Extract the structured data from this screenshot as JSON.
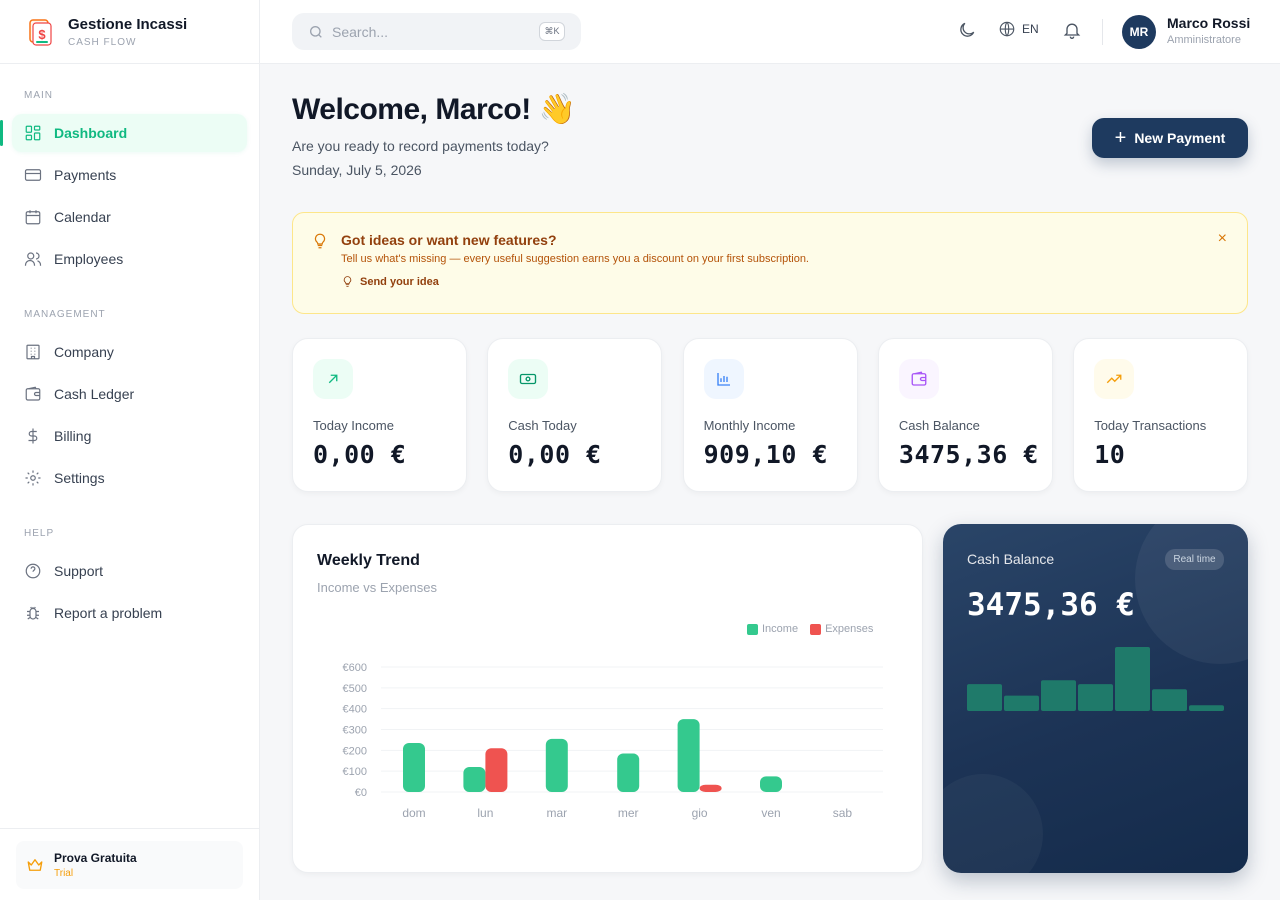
{
  "brand": {
    "title": "Gestione Incassi",
    "subtitle": "CASH FLOW"
  },
  "sidebar": {
    "sections": [
      {
        "label": "MAIN",
        "items": [
          {
            "label": "Dashboard",
            "icon": "grid-icon",
            "active": true
          },
          {
            "label": "Payments",
            "icon": "card-icon"
          },
          {
            "label": "Calendar",
            "icon": "calendar-icon"
          },
          {
            "label": "Employees",
            "icon": "users-icon"
          }
        ]
      },
      {
        "label": "MANAGEMENT",
        "items": [
          {
            "label": "Company",
            "icon": "building-icon"
          },
          {
            "label": "Cash Ledger",
            "icon": "wallet-icon"
          },
          {
            "label": "Billing",
            "icon": "dollar-icon"
          },
          {
            "label": "Settings",
            "icon": "gear-icon"
          }
        ]
      },
      {
        "label": "HELP",
        "items": [
          {
            "label": "Support",
            "icon": "help-circle-icon"
          },
          {
            "label": "Report a problem",
            "icon": "bug-icon"
          }
        ]
      }
    ],
    "trial": {
      "title": "Prova Gratuita",
      "subtitle": "Trial"
    }
  },
  "header": {
    "search_placeholder": "Search...",
    "search_shortcut": "⌘K",
    "language": "EN",
    "user": {
      "initials": "MR",
      "name": "Marco Rossi",
      "role": "Amministratore"
    }
  },
  "welcome": {
    "title": "Welcome, Marco! 👋",
    "subtitle": "Are you ready to record payments today?",
    "date": "Sunday, July 5, 2026",
    "new_payment_label": "New Payment"
  },
  "banner": {
    "title": "Got ideas or want new features?",
    "text": "Tell us what's missing — every useful suggestion earns you a discount on your first subscription.",
    "link": "Send your idea",
    "close": "×"
  },
  "stats": [
    {
      "label": "Today Income",
      "value": "0,00 €",
      "icon": "arrow-up-right-icon",
      "color": "#10b981",
      "bg": "#ecfdf5"
    },
    {
      "label": "Cash Today",
      "value": "0,00 €",
      "icon": "banknote-icon",
      "color": "#059669",
      "bg": "#ecfdf5"
    },
    {
      "label": "Monthly Income",
      "value": "909,10 €",
      "icon": "bar-chart-icon",
      "color": "#3b82f6",
      "bg": "#eff6ff"
    },
    {
      "label": "Cash Balance",
      "value": "3475,36 €",
      "icon": "wallet-icon",
      "color": "#a855f7",
      "bg": "#faf5ff"
    },
    {
      "label": "Today Transactions",
      "value": "10",
      "icon": "trending-up-icon",
      "color": "#f59e0b",
      "bg": "#fffbeb"
    }
  ],
  "weekly": {
    "title": "Weekly Trend",
    "subtitle": "Income vs Expenses"
  },
  "chart_data": {
    "type": "bar",
    "categories": [
      "dom",
      "lun",
      "mar",
      "mer",
      "gio",
      "ven",
      "sab"
    ],
    "series": [
      {
        "name": "Income",
        "color": "#34c98e",
        "values": [
          235,
          120,
          255,
          185,
          350,
          75,
          0
        ]
      },
      {
        "name": "Expenses",
        "color": "#ef5350",
        "values": [
          0,
          210,
          0,
          0,
          35,
          0,
          0
        ]
      }
    ],
    "y_ticks": [
      "€0",
      "€100",
      "€200",
      "€300",
      "€400",
      "€500",
      "€600"
    ],
    "ylim": [
      0,
      600
    ],
    "grid": true,
    "legend": "top-right"
  },
  "balance_card": {
    "title": "Cash Balance",
    "badge": "Real time",
    "value": "3475,36 €",
    "mini_bars": [
      0.42,
      0.24,
      0.48,
      0.42,
      1.0,
      0.34,
      0.09
    ]
  }
}
